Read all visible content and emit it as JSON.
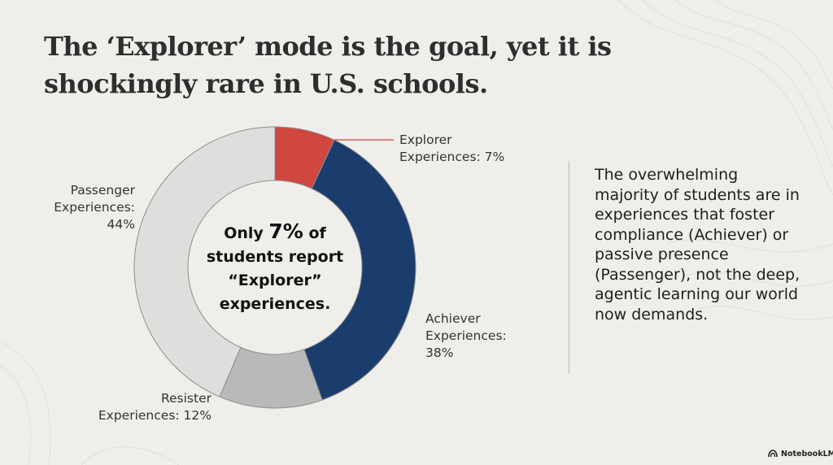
{
  "title": "The ‘Explorer’ mode is the goal, yet it is shockingly rare in U.S. schools.",
  "center": {
    "prefix": "Only",
    "highlight": "7%",
    "suffix": "of students report “Explorer” experiences."
  },
  "side_text": "The overwhelming majority of students are in experiences that foster compliance (Achiever) or passive presence (Passenger), not the deep, agentic learning our world now demands.",
  "brand": {
    "label": "NotebookLM",
    "icon": "notebooklm-logo-icon"
  },
  "colors": {
    "explorer": "#d0473f",
    "achiever": "#1b3d6e",
    "resister": "#b9b9b9",
    "passenger": "#dededc",
    "background": "#efeeea"
  },
  "chart_data": {
    "type": "pie",
    "style": "donut",
    "categories": [
      "Explorer",
      "Achiever",
      "Resister",
      "Passenger"
    ],
    "values": [
      7,
      38,
      12,
      44
    ],
    "unit": "%",
    "labels": {
      "explorer": [
        "Explorer",
        "Experiences: 7%"
      ],
      "achiever": [
        "Achiever",
        "Experiences:",
        "38%"
      ],
      "resister": [
        "Resister",
        "Experiences: 12%"
      ],
      "passenger": [
        "Passenger",
        "Experiences:",
        "44%"
      ]
    }
  }
}
